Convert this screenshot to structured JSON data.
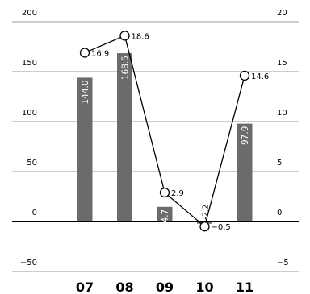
{
  "chart_data": {
    "type": "bar+line",
    "categories": [
      "07",
      "08",
      "09",
      "10",
      "11"
    ],
    "series": [
      {
        "type": "bar",
        "axis": "left",
        "values": [
          144.0,
          168.5,
          14.7,
          -2.2,
          97.9
        ],
        "labels": [
          "144.0",
          "168.5",
          "14.7",
          "-2.2",
          "97.9"
        ],
        "color": "#6b6b6b"
      },
      {
        "type": "line",
        "axis": "right",
        "values": [
          16.9,
          18.6,
          2.9,
          -0.5,
          14.6
        ],
        "labels": [
          "16.9",
          "18.6",
          "2.9",
          "−0.5",
          "14.6"
        ],
        "color": "#000000",
        "marker": "open-circle"
      }
    ],
    "left_axis": {
      "ylim": [
        -50,
        200
      ],
      "ticks": [
        "200",
        "150",
        "100",
        "50",
        "0",
        "−50"
      ],
      "tick_values": [
        200,
        150,
        100,
        50,
        0,
        -50
      ]
    },
    "right_axis": {
      "ylim": [
        -5,
        20
      ],
      "ticks": [
        "20",
        "15",
        "10",
        "5",
        "0",
        "−5"
      ],
      "tick_values": [
        20,
        15,
        10,
        5,
        0,
        -5
      ]
    },
    "grid": true,
    "title": "",
    "xlabel": "",
    "ylabel": ""
  }
}
